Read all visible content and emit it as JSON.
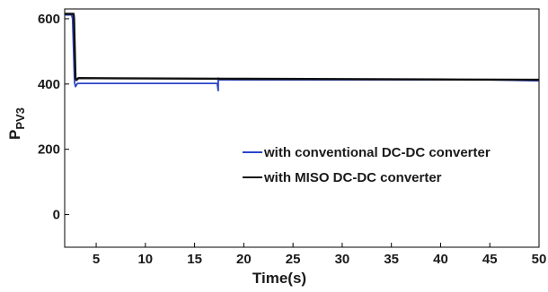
{
  "chart_data": {
    "type": "line",
    "title": "",
    "xlabel": "Time(s)",
    "ylabel": "P",
    "ylabel_subscript": "PV3",
    "xlim": [
      1.8,
      50
    ],
    "ylim": [
      -100,
      630
    ],
    "xticks": [
      5,
      10,
      15,
      20,
      25,
      30,
      35,
      40,
      45,
      50
    ],
    "yticks": [
      0,
      200,
      400,
      600
    ],
    "legend_placement": "center-right",
    "series": [
      {
        "name": "with conventional DC-DC converter",
        "color": "#2b45c8",
        "x": [
          1.8,
          2.5,
          2.6,
          2.8,
          2.9,
          3.1,
          17.3,
          17.4,
          17.4,
          17.5,
          45,
          50
        ],
        "y": [
          612,
          612,
          600,
          405,
          392,
          402,
          402,
          380,
          418,
          413,
          413,
          410
        ]
      },
      {
        "name": "with MISO DC-DC converter",
        "color": "#111111",
        "x": [
          1.8,
          2.7,
          2.75,
          2.9,
          3.0,
          3.2,
          10,
          20,
          30,
          40,
          50
        ],
        "y": [
          615,
          615,
          600,
          420,
          412,
          418,
          417,
          416,
          415,
          414,
          413
        ]
      }
    ]
  }
}
